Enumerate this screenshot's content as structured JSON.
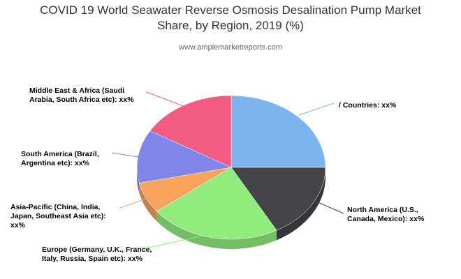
{
  "chart_data": {
    "type": "pie",
    "title": "COVID 19 World Seawater Reverse Osmosis Desalination Pump Market Share, by Region, 2019 (%)",
    "subtitle": "www.amplemarketreports.com",
    "categories": [
      "/ Countries: xx%",
      "North America (U.S., Canada, Mexico): xx%",
      "Europe (Germany, U.K., France, Italy, Russia, Spain etc): xx%",
      "Asia-Pacific (China, India, Japan, Southeast Asia etc): xx%",
      "South America (Brazil, Argentina etc): xx%",
      "Middle East & Africa (Saudi Arabia, South Africa etc): xx%"
    ],
    "values": [
      25,
      17,
      22.5,
      7,
      12,
      16.5
    ],
    "colors": [
      "#7cb5ec",
      "#434348",
      "#90ed7d",
      "#f7a35c",
      "#8085e9",
      "#f15c80"
    ]
  }
}
